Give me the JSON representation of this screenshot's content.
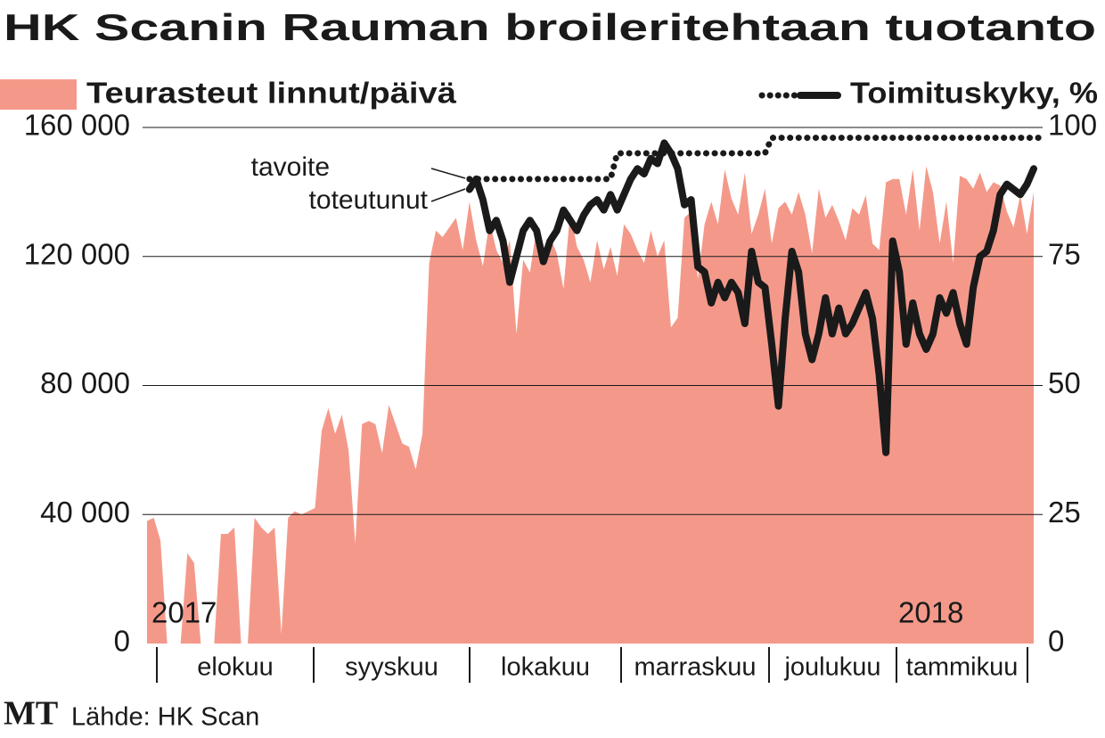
{
  "chart_data": {
    "type": "area-line",
    "title": "HK Scanin Rauman broileritehtaan tuotanto",
    "line_legend_label": "Toimituskyky, %",
    "year_labels": [
      "2017",
      "2018"
    ],
    "months": [
      "elokuu",
      "syyskuu",
      "lokakuu",
      "marraskuu",
      "joulukuu",
      "tammikuu"
    ],
    "source": "Lähde: HK Scan",
    "logo": "MT",
    "ylim": [
      0,
      160000
    ],
    "yticks": [
      0,
      {
        "value": 40000,
        "label": "40 000"
      },
      {
        "value": 80000,
        "label": "80 000"
      },
      {
        "value": 120000,
        "label": "120 000"
      },
      {
        "value": 160000,
        "label": "160 000"
      }
    ],
    "y2lim": [
      0,
      100
    ],
    "y2ticks": [
      0,
      25,
      50,
      75,
      100
    ],
    "grid": true,
    "series": [
      {
        "name": "Teurasteut linnut/päivä",
        "type": "area",
        "color": "#f4998a",
        "values": [
          38000,
          39000,
          32000,
          0,
          0,
          0,
          28000,
          25000,
          0,
          0,
          0,
          34000,
          34000,
          36000,
          0,
          0,
          39000,
          36000,
          34000,
          36000,
          3000,
          39000,
          41000,
          40000,
          41000,
          42000,
          66000,
          73000,
          65000,
          71000,
          60000,
          31000,
          68000,
          69000,
          68000,
          59000,
          74000,
          68000,
          62000,
          61000,
          54000,
          65000,
          118000,
          128000,
          126000,
          129000,
          132000,
          122000,
          137000,
          125000,
          117000,
          131000,
          122000,
          118000,
          125000,
          96000,
          119000,
          115000,
          129000,
          120000,
          126000,
          121000,
          110000,
          134000,
          123000,
          119000,
          112000,
          125000,
          116000,
          123000,
          114000,
          130000,
          127000,
          122000,
          118000,
          128000,
          120000,
          125000,
          98000,
          101000,
          132000,
          134000,
          113000,
          130000,
          137000,
          130000,
          147000,
          138000,
          133000,
          146000,
          127000,
          133000,
          141000,
          124000,
          135000,
          137000,
          133000,
          140000,
          133000,
          121000,
          141000,
          132000,
          136000,
          131000,
          125000,
          135000,
          133000,
          139000,
          124000,
          122000,
          143000,
          144000,
          144000,
          133000,
          147000,
          128000,
          148000,
          140000,
          124000,
          137000,
          118000,
          145000,
          144000,
          141000,
          146000,
          140000,
          143000,
          142000,
          134000,
          129000,
          139000,
          127000,
          140000
        ]
      },
      {
        "name": "tavoite",
        "type": "dotted",
        "axis": "y2",
        "color": "#1a1a1a",
        "values": [
          null,
          null,
          null,
          null,
          null,
          null,
          null,
          null,
          null,
          null,
          null,
          null,
          null,
          null,
          null,
          null,
          null,
          null,
          null,
          null,
          null,
          null,
          null,
          null,
          null,
          null,
          null,
          null,
          null,
          null,
          null,
          null,
          null,
          null,
          null,
          null,
          null,
          null,
          null,
          null,
          null,
          null,
          null,
          null,
          null,
          null,
          null,
          null,
          90,
          90,
          90,
          90,
          90,
          90,
          90,
          90,
          90,
          90,
          90,
          90,
          90,
          90,
          90,
          90,
          90,
          90,
          90,
          90,
          90,
          90,
          95,
          95,
          95,
          95,
          95,
          95,
          95,
          95,
          95,
          95,
          95,
          95,
          95,
          95,
          95,
          95,
          95,
          95,
          95,
          95,
          95,
          95,
          95,
          98,
          98,
          98,
          98,
          98,
          98,
          98,
          98,
          98,
          98,
          98,
          98,
          98,
          98,
          98,
          98,
          98,
          98,
          98,
          98,
          98,
          98,
          98,
          98,
          98,
          98,
          98,
          98,
          98,
          98,
          98,
          98,
          98,
          98,
          98,
          98,
          98,
          98,
          98,
          98,
          98
        ]
      },
      {
        "name": "toteutunut",
        "type": "line",
        "axis": "y2",
        "color": "#1a1a1a",
        "values": [
          null,
          null,
          null,
          null,
          null,
          null,
          null,
          null,
          null,
          null,
          null,
          null,
          null,
          null,
          null,
          null,
          null,
          null,
          null,
          null,
          null,
          null,
          null,
          null,
          null,
          null,
          null,
          null,
          null,
          null,
          null,
          null,
          null,
          null,
          null,
          null,
          null,
          null,
          null,
          null,
          null,
          null,
          null,
          null,
          null,
          null,
          null,
          null,
          88,
          90,
          86,
          80,
          82,
          78,
          70,
          75,
          80,
          82,
          80,
          74,
          78,
          80,
          84,
          82,
          80,
          83,
          85,
          86,
          84,
          87,
          84,
          87,
          90,
          92,
          91,
          94,
          93,
          97,
          95,
          92,
          85,
          86,
          73,
          72,
          66,
          70,
          67,
          70,
          68,
          62,
          76,
          70,
          69,
          58,
          46,
          63,
          76,
          72,
          60,
          55,
          60,
          67,
          60,
          65,
          60,
          62,
          65,
          68,
          63,
          52,
          37,
          78,
          72,
          58,
          66,
          60,
          57,
          60,
          67,
          64,
          68,
          62,
          58,
          69,
          75,
          76,
          80,
          87,
          89,
          88,
          87,
          89,
          92
        ]
      }
    ]
  }
}
